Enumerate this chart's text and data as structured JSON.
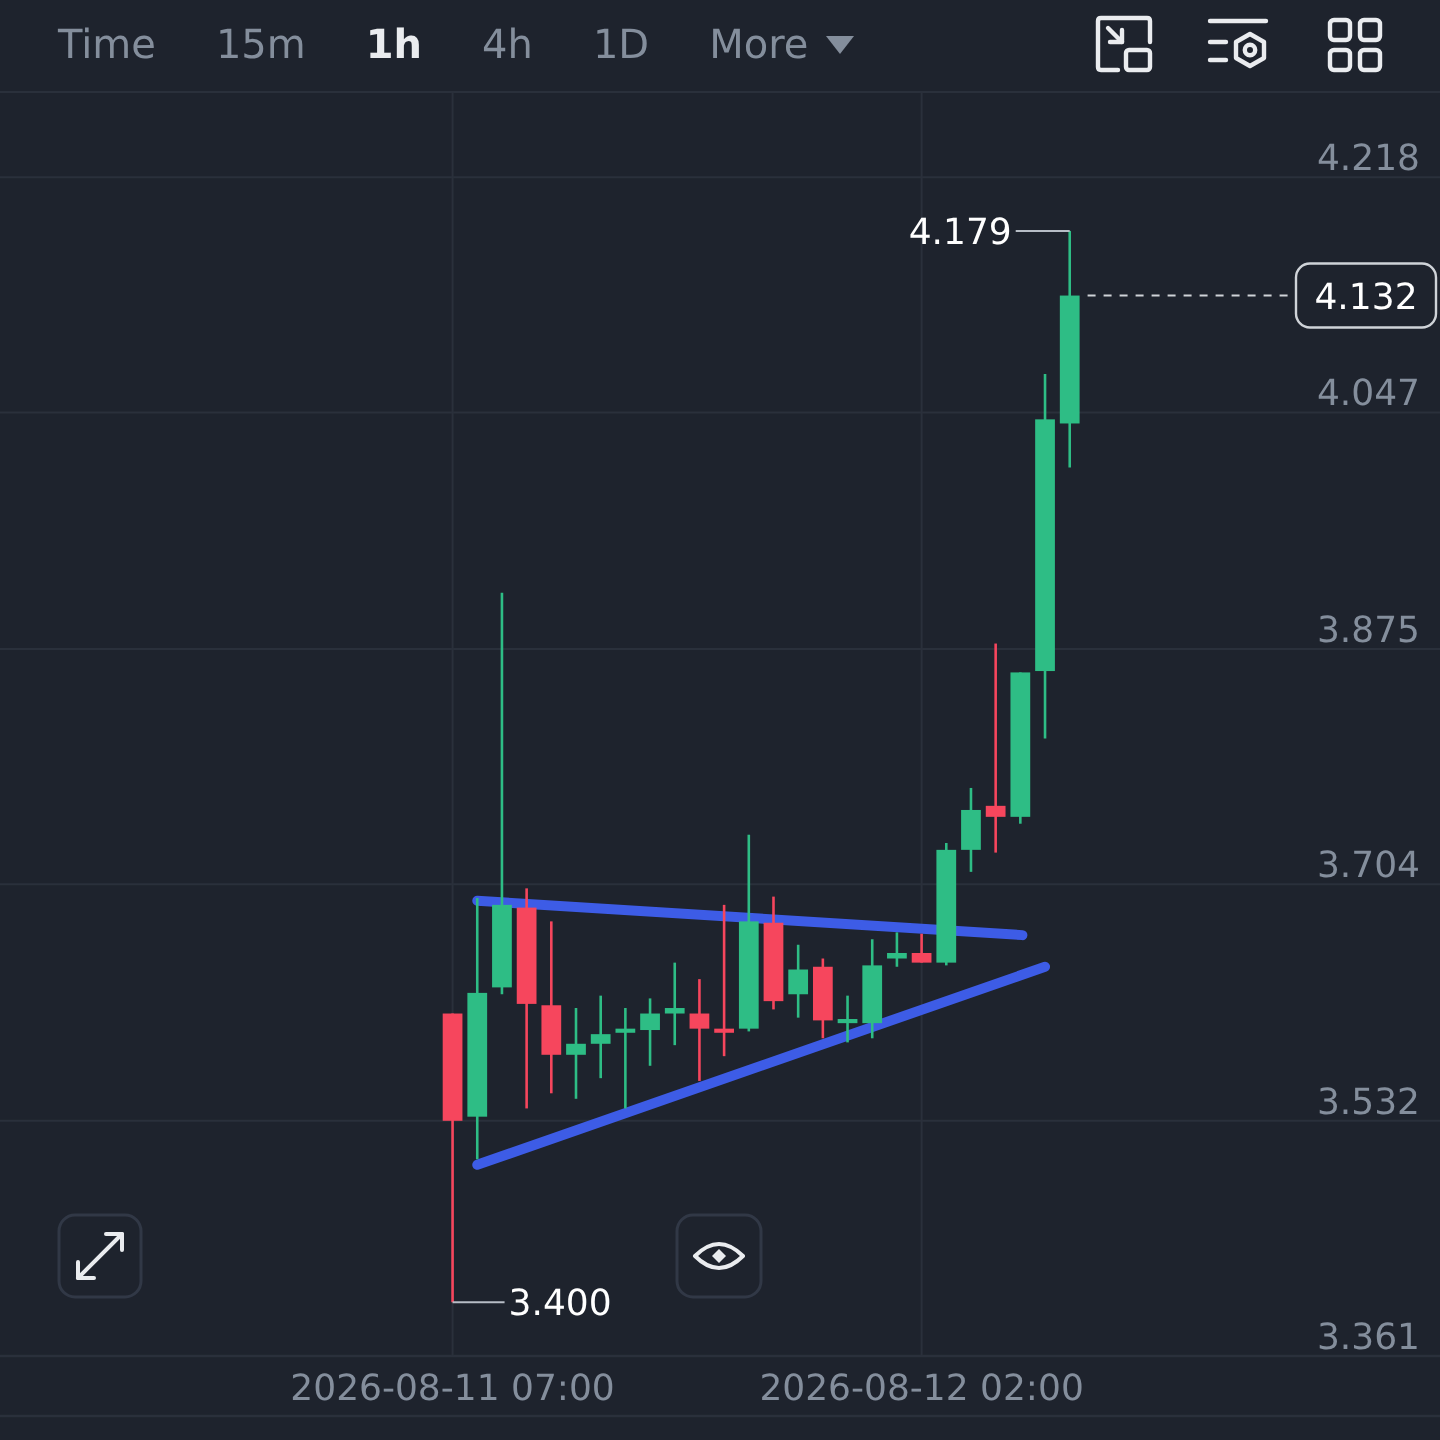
{
  "chart_data": {
    "type": "candlestick",
    "annotations": [
      "Time",
      "15m",
      "1h",
      "4h",
      "1D",
      "More",
      {
        "text": "4.179",
        "x": "2026-08-12T08:00",
        "y": 4.179
      },
      {
        "text": "3.400",
        "x": "2026-08-11T07:00",
        "y": 3.4
      }
    ],
    "x": [
      "2026-08-11T07:00",
      "2026-08-11T08:00",
      "2026-08-11T09:00",
      "2026-08-11T10:00",
      "2026-08-11T11:00",
      "2026-08-11T12:00",
      "2026-08-11T13:00",
      "2026-08-11T14:00",
      "2026-08-11T15:00",
      "2026-08-11T16:00",
      "2026-08-11T17:00",
      "2026-08-11T18:00",
      "2026-08-11T19:00",
      "2026-08-11T20:00",
      "2026-08-11T21:00",
      "2026-08-11T22:00",
      "2026-08-11T23:00",
      "2026-08-12T00:00",
      "2026-08-12T01:00",
      "2026-08-12T02:00",
      "2026-08-12T03:00",
      "2026-08-12T04:00",
      "2026-08-12T05:00",
      "2026-08-12T06:00",
      "2026-08-12T07:00",
      "2026-08-12T08:00"
    ],
    "ohlc": [
      [
        3.61,
        3.61,
        3.4,
        3.532
      ],
      [
        3.535,
        3.694,
        3.504,
        3.625
      ],
      [
        3.629,
        3.916,
        3.624,
        3.689
      ],
      [
        3.687,
        3.701,
        3.541,
        3.617
      ],
      [
        3.616,
        3.677,
        3.552,
        3.58
      ],
      [
        3.58,
        3.614,
        3.548,
        3.588
      ],
      [
        3.588,
        3.623,
        3.563,
        3.595
      ],
      [
        3.596,
        3.614,
        3.541,
        3.599
      ],
      [
        3.598,
        3.621,
        3.572,
        3.61
      ],
      [
        3.61,
        3.647,
        3.587,
        3.614
      ],
      [
        3.61,
        3.635,
        3.561,
        3.599
      ],
      [
        3.599,
        3.689,
        3.579,
        3.596
      ],
      [
        3.599,
        3.74,
        3.597,
        3.677
      ],
      [
        3.676,
        3.695,
        3.613,
        3.619
      ],
      [
        3.624,
        3.66,
        3.607,
        3.642
      ],
      [
        3.644,
        3.65,
        3.592,
        3.605
      ],
      [
        3.603,
        3.623,
        3.589,
        3.606
      ],
      [
        3.603,
        3.664,
        3.592,
        3.645
      ],
      [
        3.65,
        3.669,
        3.644,
        3.654
      ],
      [
        3.654,
        3.668,
        3.647,
        3.647
      ],
      [
        3.647,
        3.734,
        3.645,
        3.729
      ],
      [
        3.729,
        3.774,
        3.713,
        3.758
      ],
      [
        3.761,
        3.879,
        3.727,
        3.753
      ],
      [
        3.753,
        3.858,
        3.748,
        3.858
      ],
      [
        3.859,
        4.075,
        3.81,
        4.042
      ],
      [
        4.039,
        4.179,
        4.007,
        4.132
      ]
    ],
    "colors": [
      "#f6465d",
      "#2ebd85",
      "#2ebd85",
      "#f6465d",
      "#f6465d",
      "#2ebd85",
      "#2ebd85",
      "#2ebd85",
      "#2ebd85",
      "#2ebd85",
      "#f6465d",
      "#f6465d",
      "#2ebd85",
      "#f6465d",
      "#2ebd85",
      "#f6465d",
      "#2ebd85",
      "#2ebd85",
      "#2ebd85",
      "#f6465d",
      "#2ebd85",
      "#2ebd85",
      "#f6465d",
      "#2ebd85",
      "#2ebd85",
      "#2ebd85"
    ],
    "series": [
      {
        "type": "line",
        "x": [
          "2026-08-11T08:00",
          "2026-08-12T06:05"
        ],
        "values": [
          3.692,
          3.667
        ],
        "color": "#3d5ce6"
      },
      {
        "type": "line",
        "x": [
          "2026-08-11T08:00",
          "2026-08-12T07:00"
        ],
        "values": [
          3.5,
          3.644
        ],
        "color": "#3d5ce6"
      }
    ],
    "xlim": [
      "2026-08-10T12:40",
      "2026-08-12T23:00"
    ],
    "xticks": [
      {
        "value": "2026-08-11T07:00",
        "label": "2026-08-11 07:00"
      },
      {
        "value": "2026-08-12T02:00",
        "label": "2026-08-12 02:00"
      }
    ],
    "ylim": [
      3.361,
      4.28
    ],
    "yticks": [
      3.361,
      3.532,
      3.704,
      3.875,
      4.047,
      4.218
    ],
    "ref_lines": [
      {
        "axis": "y",
        "value": 4.132,
        "label": "4.132",
        "line_style": "dashed",
        "color": "#cfd3d8"
      }
    ],
    "grid": true
  }
}
